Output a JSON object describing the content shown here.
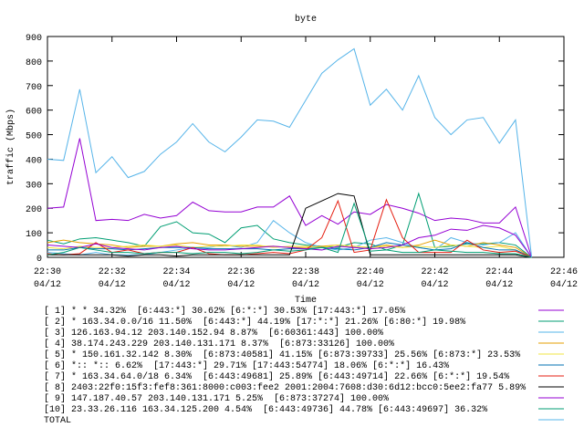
{
  "chart_data": {
    "type": "line",
    "title": "byte",
    "x_label": "Time",
    "y_label": "traffic (Mbps)",
    "x": [
      1350,
      1350.5,
      1351,
      1351.5,
      1352,
      1352.5,
      1353,
      1353.5,
      1354,
      1354.5,
      1355,
      1355.5,
      1356,
      1356.5,
      1357,
      1357.5,
      1358,
      1358.5,
      1359,
      1359.5,
      1360,
      1360.5,
      1361,
      1361.5,
      1362,
      1362.5,
      1363,
      1363.5,
      1364,
      1364.5,
      1365
    ],
    "xlim": [
      1350,
      1366
    ],
    "xticks": [
      {
        "value": 1350,
        "label": [
          "22:30",
          "04/12"
        ]
      },
      {
        "value": 1352,
        "label": [
          "22:32",
          "04/12"
        ]
      },
      {
        "value": 1354,
        "label": [
          "22:34",
          "04/12"
        ]
      },
      {
        "value": 1356,
        "label": [
          "22:36",
          "04/12"
        ]
      },
      {
        "value": 1358,
        "label": [
          "22:38",
          "04/12"
        ]
      },
      {
        "value": 1360,
        "label": [
          "22:40",
          "04/12"
        ]
      },
      {
        "value": 1362,
        "label": [
          "22:42",
          "04/12"
        ]
      },
      {
        "value": 1364,
        "label": [
          "22:44",
          "04/12"
        ]
      },
      {
        "value": 1366,
        "label": [
          "22:46",
          "04/12"
        ]
      }
    ],
    "ylim": [
      0,
      900
    ],
    "yticks": [
      0,
      100,
      200,
      300,
      400,
      500,
      600,
      700,
      800,
      900
    ],
    "series": [
      {
        "name": "[ 1] * * 34.32%  [6:443:*] 30.62% [6:*:*] 30.53% [17:443:*] 17.05%",
        "color": "#9400d3",
        "values": [
          200,
          205,
          485,
          150,
          155,
          150,
          175,
          160,
          170,
          225,
          190,
          185,
          185,
          205,
          205,
          250,
          130,
          170,
          135,
          185,
          175,
          215,
          200,
          180,
          150,
          160,
          155,
          140,
          140,
          205,
          0
        ]
      },
      {
        "name": "[ 2] * 163.34.0.0/16 11.50%  [6:443:*] 44.19% [17:*:*] 21.26% [6:80:*] 19.98%",
        "color": "#009e73",
        "values": [
          70,
          55,
          75,
          80,
          70,
          60,
          45,
          125,
          145,
          100,
          95,
          60,
          120,
          130,
          75,
          60,
          50,
          45,
          40,
          60,
          55,
          30,
          50,
          260,
          40,
          45,
          55,
          55,
          60,
          50,
          0
        ]
      },
      {
        "name": "[ 3] 126.163.94.12 203.140.152.94 8.87%  [6:60361:443] 100.00%",
        "color": "#56b4e9",
        "values": [
          20,
          15,
          10,
          20,
          10,
          10,
          10,
          20,
          30,
          40,
          40,
          50,
          40,
          60,
          150,
          100,
          60,
          40,
          30,
          40,
          70,
          80,
          60,
          40,
          30,
          80,
          60,
          50,
          60,
          100,
          0
        ]
      },
      {
        "name": "[ 4] 38.174.243.229 203.140.131.171 8.37%  [6:873:33126] 100.00%",
        "color": "#e69f00",
        "values": [
          60,
          70,
          60,
          55,
          50,
          40,
          45,
          45,
          55,
          60,
          50,
          50,
          45,
          45,
          45,
          40,
          40,
          45,
          50,
          45,
          40,
          50,
          40,
          50,
          70,
          50,
          45,
          60,
          50,
          40,
          0
        ]
      },
      {
        "name": "[ 5] * 150.161.32.142 8.30%  [6:873:40581] 41.15% [6:873:39733] 25.56% [6:873:*] 23.53%",
        "color": "#f0e442",
        "values": [
          40,
          35,
          45,
          40,
          40,
          45,
          50,
          45,
          50,
          40,
          45,
          45,
          50,
          50,
          40,
          45,
          45,
          40,
          50,
          45,
          40,
          45,
          40,
          45,
          40,
          50,
          45,
          40,
          45,
          30,
          0
        ]
      },
      {
        "name": "[ 6] *:: *:: 6.62%  [17:443:*] 29.71% [17:443:54774] 18.06% [6:*:*] 16.43%",
        "color": "#0072b2",
        "values": [
          30,
          30,
          40,
          35,
          35,
          30,
          35,
          40,
          40,
          40,
          35,
          35,
          35,
          35,
          30,
          35,
          35,
          40,
          35,
          30,
          40,
          60,
          50,
          40,
          30,
          35,
          60,
          40,
          30,
          30,
          0
        ]
      },
      {
        "name": "[ 7] * 163.34.64.0/18 6.34%  [6:443:49681] 25.89% [6:443:49714] 22.66% [6:*:*] 19.54%",
        "color": "#e51e10",
        "values": [
          15,
          10,
          15,
          60,
          20,
          30,
          15,
          20,
          20,
          40,
          15,
          10,
          10,
          15,
          20,
          15,
          30,
          80,
          230,
          20,
          30,
          235,
          80,
          20,
          20,
          20,
          70,
          30,
          20,
          25,
          0
        ]
      },
      {
        "name": "[ 8] 2403:22f0:15f3:fef8:361:8000:c003:fee2 2001:2004:7608:d30:6d12:bcc0:5ee2:fa77 5.89%",
        "color": "#000000",
        "values": [
          10,
          10,
          10,
          10,
          10,
          5,
          10,
          10,
          5,
          10,
          10,
          10,
          10,
          10,
          10,
          10,
          200,
          230,
          260,
          250,
          10,
          10,
          10,
          10,
          10,
          10,
          10,
          10,
          10,
          10,
          0
        ]
      },
      {
        "name": "[ 9] 147.187.40.57 203.140.131.171 5.25%  [6:873:37274] 100.00%",
        "color": "#9400d3",
        "values": [
          50,
          45,
          40,
          55,
          40,
          35,
          30,
          40,
          45,
          35,
          30,
          30,
          35,
          40,
          45,
          40,
          35,
          30,
          45,
          40,
          35,
          40,
          50,
          80,
          90,
          115,
          110,
          130,
          120,
          90,
          0
        ]
      },
      {
        "name": "[10] 23.33.26.116 163.34.125.200 4.54%  [6:443:49736] 44.78% [6:443:49697] 36.32%",
        "color": "#009e73",
        "values": [
          10,
          20,
          40,
          30,
          20,
          20,
          15,
          20,
          20,
          15,
          20,
          20,
          15,
          20,
          30,
          25,
          30,
          40,
          20,
          220,
          25,
          30,
          20,
          20,
          30,
          25,
          20,
          20,
          15,
          15,
          0
        ]
      },
      {
        "name": "TOTAL",
        "color": "#56b4e9",
        "values": [
          400,
          395,
          685,
          345,
          410,
          325,
          350,
          420,
          470,
          545,
          470,
          430,
          490,
          560,
          555,
          530,
          640,
          750,
          805,
          850,
          620,
          685,
          600,
          740,
          570,
          500,
          560,
          570,
          465,
          560,
          0
        ]
      }
    ]
  }
}
